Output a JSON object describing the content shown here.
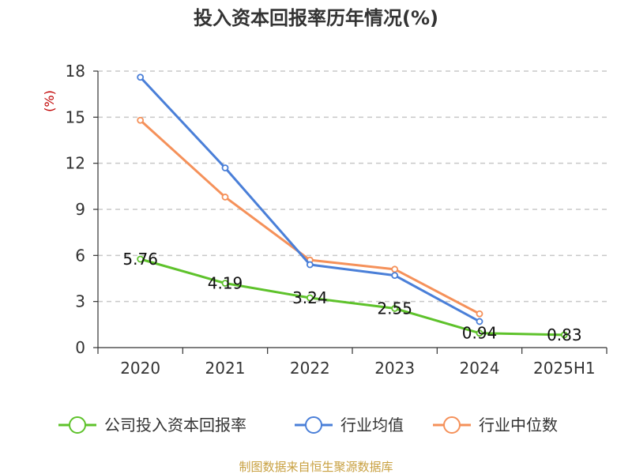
{
  "chart_data": {
    "type": "line",
    "title": "投入资本回报率历年情况(%)",
    "unit_label": "(%)",
    "categories": [
      "2020",
      "2021",
      "2022",
      "2023",
      "2024",
      "2025H1"
    ],
    "ylim": [
      0,
      18
    ],
    "yticks": [
      0,
      3,
      6,
      9,
      12,
      15,
      18
    ],
    "grid": true,
    "legend_position": "bottom",
    "series": [
      {
        "name": "公司投入资本回报率",
        "color": "#5ec22b",
        "values": [
          5.76,
          4.19,
          3.24,
          2.55,
          0.94,
          0.83
        ],
        "labels": [
          "5.76",
          "4.19",
          "3.24",
          "2.55",
          "0.94",
          "0.83"
        ]
      },
      {
        "name": "行业均值",
        "color": "#4a7fd8",
        "values": [
          17.6,
          11.7,
          5.4,
          4.7,
          1.7,
          null
        ]
      },
      {
        "name": "行业中位数",
        "color": "#f5915a",
        "values": [
          14.8,
          9.8,
          5.7,
          5.1,
          2.2,
          null
        ]
      }
    ],
    "source": "制图数据来自恒生聚源数据库"
  }
}
